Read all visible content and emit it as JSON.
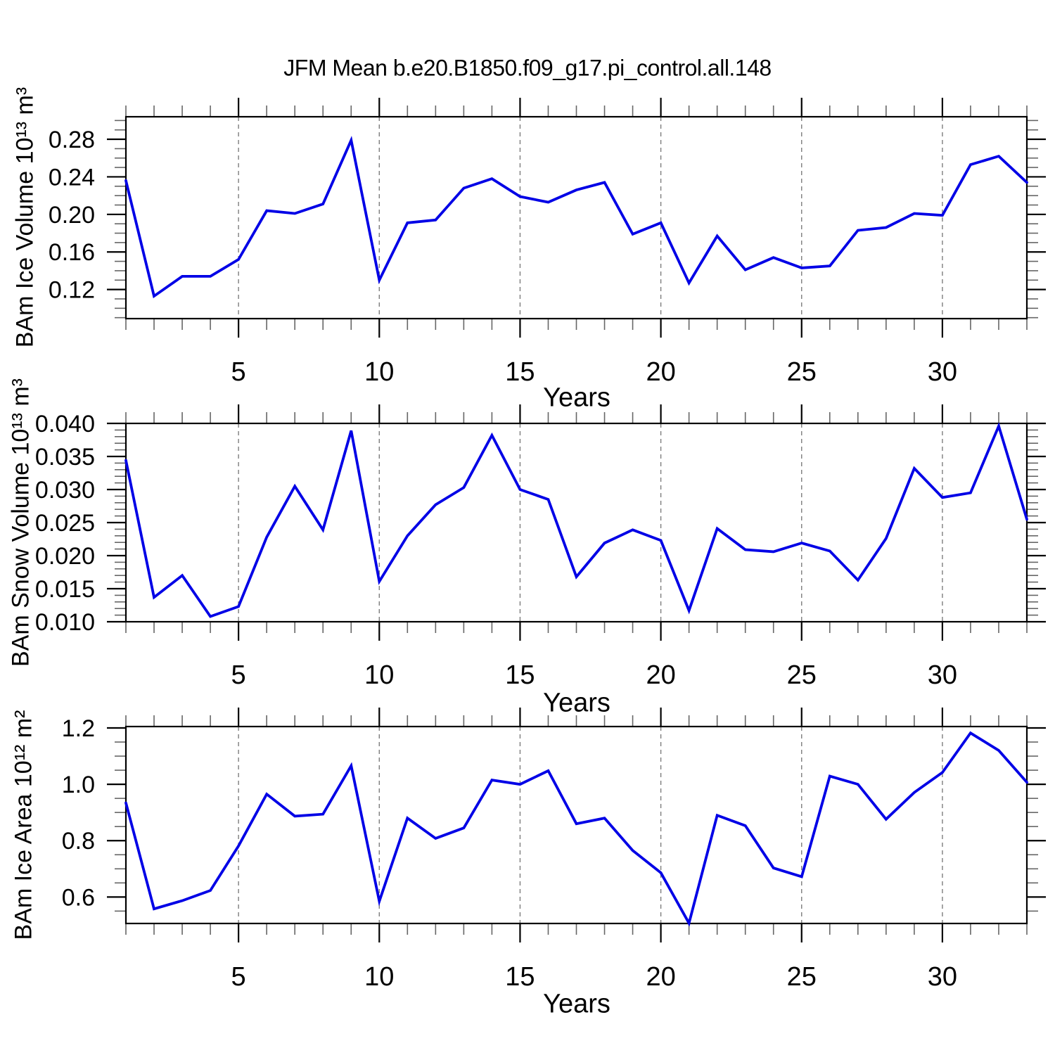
{
  "title": "JFM Mean b.e20.B1850.f09_g17.pi_control.all.148",
  "colors": {
    "line": "#0000E6",
    "grid": "#7D7D7D",
    "axis": "#000000",
    "minor_tick": "#666666",
    "background": "#FFFFFF"
  },
  "chart_data": [
    {
      "type": "line",
      "title": "JFM Mean b.e20.B1850.f09_g17.pi_control.all.148",
      "ylabel": "BAm Ice Volume 10¹³ m³",
      "xlabel": "Years",
      "legend": "none",
      "grid": "vertical-dashed",
      "x": [
        1,
        2,
        3,
        4,
        5,
        6,
        7,
        8,
        9,
        10,
        11,
        12,
        13,
        14,
        15,
        16,
        17,
        18,
        19,
        20,
        21,
        22,
        23,
        24,
        25,
        26,
        27,
        28,
        29,
        30,
        31,
        32,
        33
      ],
      "values": [
        0.236,
        0.113,
        0.134,
        0.134,
        0.152,
        0.204,
        0.201,
        0.211,
        0.279,
        0.13,
        0.191,
        0.194,
        0.228,
        0.238,
        0.219,
        0.213,
        0.226,
        0.234,
        0.179,
        0.191,
        0.127,
        0.177,
        0.141,
        0.154,
        0.143,
        0.145,
        0.183,
        0.186,
        0.201,
        0.199,
        0.253,
        0.262,
        0.234
      ],
      "xlim": [
        1,
        33
      ],
      "ylim": [
        0.089,
        0.304
      ],
      "xticks": [
        5,
        10,
        15,
        20,
        25,
        30
      ],
      "xtick_labels": [
        "5",
        "10",
        "15",
        "20",
        "25",
        "30"
      ],
      "xminor_step": 1,
      "yticks": [
        0.12,
        0.16,
        0.2,
        0.24,
        0.28
      ],
      "ytick_labels": [
        "0.12",
        "0.16",
        "0.20",
        "0.24",
        "0.28"
      ],
      "yminor_step": 0.01
    },
    {
      "type": "line",
      "title": "",
      "ylabel": "BAm Snow Volume 10¹³ m³",
      "xlabel": "Years",
      "legend": "none",
      "grid": "vertical-dashed",
      "x": [
        1,
        2,
        3,
        4,
        5,
        6,
        7,
        8,
        9,
        10,
        11,
        12,
        13,
        14,
        15,
        16,
        17,
        18,
        19,
        20,
        21,
        22,
        23,
        24,
        25,
        26,
        27,
        28,
        29,
        30,
        31,
        32,
        33
      ],
      "values": [
        0.0344,
        0.0137,
        0.017,
        0.0108,
        0.0123,
        0.0228,
        0.0305,
        0.0239,
        0.0389,
        0.0161,
        0.023,
        0.0277,
        0.0303,
        0.0382,
        0.03,
        0.0285,
        0.0168,
        0.0219,
        0.0239,
        0.0223,
        0.0117,
        0.0241,
        0.0209,
        0.0206,
        0.0219,
        0.0207,
        0.0163,
        0.0226,
        0.0332,
        0.0288,
        0.0295,
        0.0396,
        0.0255
      ],
      "xlim": [
        1,
        33
      ],
      "ylim": [
        0.01,
        0.04
      ],
      "xticks": [
        5,
        10,
        15,
        20,
        25,
        30
      ],
      "xtick_labels": [
        "5",
        "10",
        "15",
        "20",
        "25",
        "30"
      ],
      "xminor_step": 1,
      "yticks": [
        0.01,
        0.015,
        0.02,
        0.025,
        0.03,
        0.035,
        0.04
      ],
      "ytick_labels": [
        "0.010",
        "0.015",
        "0.020",
        "0.025",
        "0.030",
        "0.035",
        "0.040"
      ],
      "yminor_step": 0.001
    },
    {
      "type": "line",
      "title": "",
      "ylabel": "BAm Ice Area 10¹² m²",
      "xlabel": "Years",
      "legend": "none",
      "grid": "vertical-dashed",
      "x": [
        1,
        2,
        3,
        4,
        5,
        6,
        7,
        8,
        9,
        10,
        11,
        12,
        13,
        14,
        15,
        16,
        17,
        18,
        19,
        20,
        21,
        22,
        23,
        24,
        25,
        26,
        27,
        28,
        29,
        30,
        31,
        32,
        33
      ],
      "values": [
        0.934,
        0.558,
        0.587,
        0.623,
        0.781,
        0.965,
        0.887,
        0.894,
        1.066,
        0.585,
        0.88,
        0.808,
        0.845,
        1.015,
        1.0,
        1.048,
        0.86,
        0.88,
        0.765,
        0.686,
        0.507,
        0.89,
        0.853,
        0.703,
        0.672,
        1.029,
        1.0,
        0.876,
        0.971,
        1.042,
        1.182,
        1.12,
        1.007
      ],
      "xlim": [
        1,
        33
      ],
      "ylim": [
        0.506,
        1.205
      ],
      "xticks": [
        5,
        10,
        15,
        20,
        25,
        30
      ],
      "xtick_labels": [
        "5",
        "10",
        "15",
        "20",
        "25",
        "30"
      ],
      "xminor_step": 1,
      "yticks": [
        0.6,
        0.8,
        1.0,
        1.2
      ],
      "ytick_labels": [
        "0.6",
        "0.8",
        "1.0",
        "1.2"
      ],
      "yminor_step": 0.05
    }
  ]
}
